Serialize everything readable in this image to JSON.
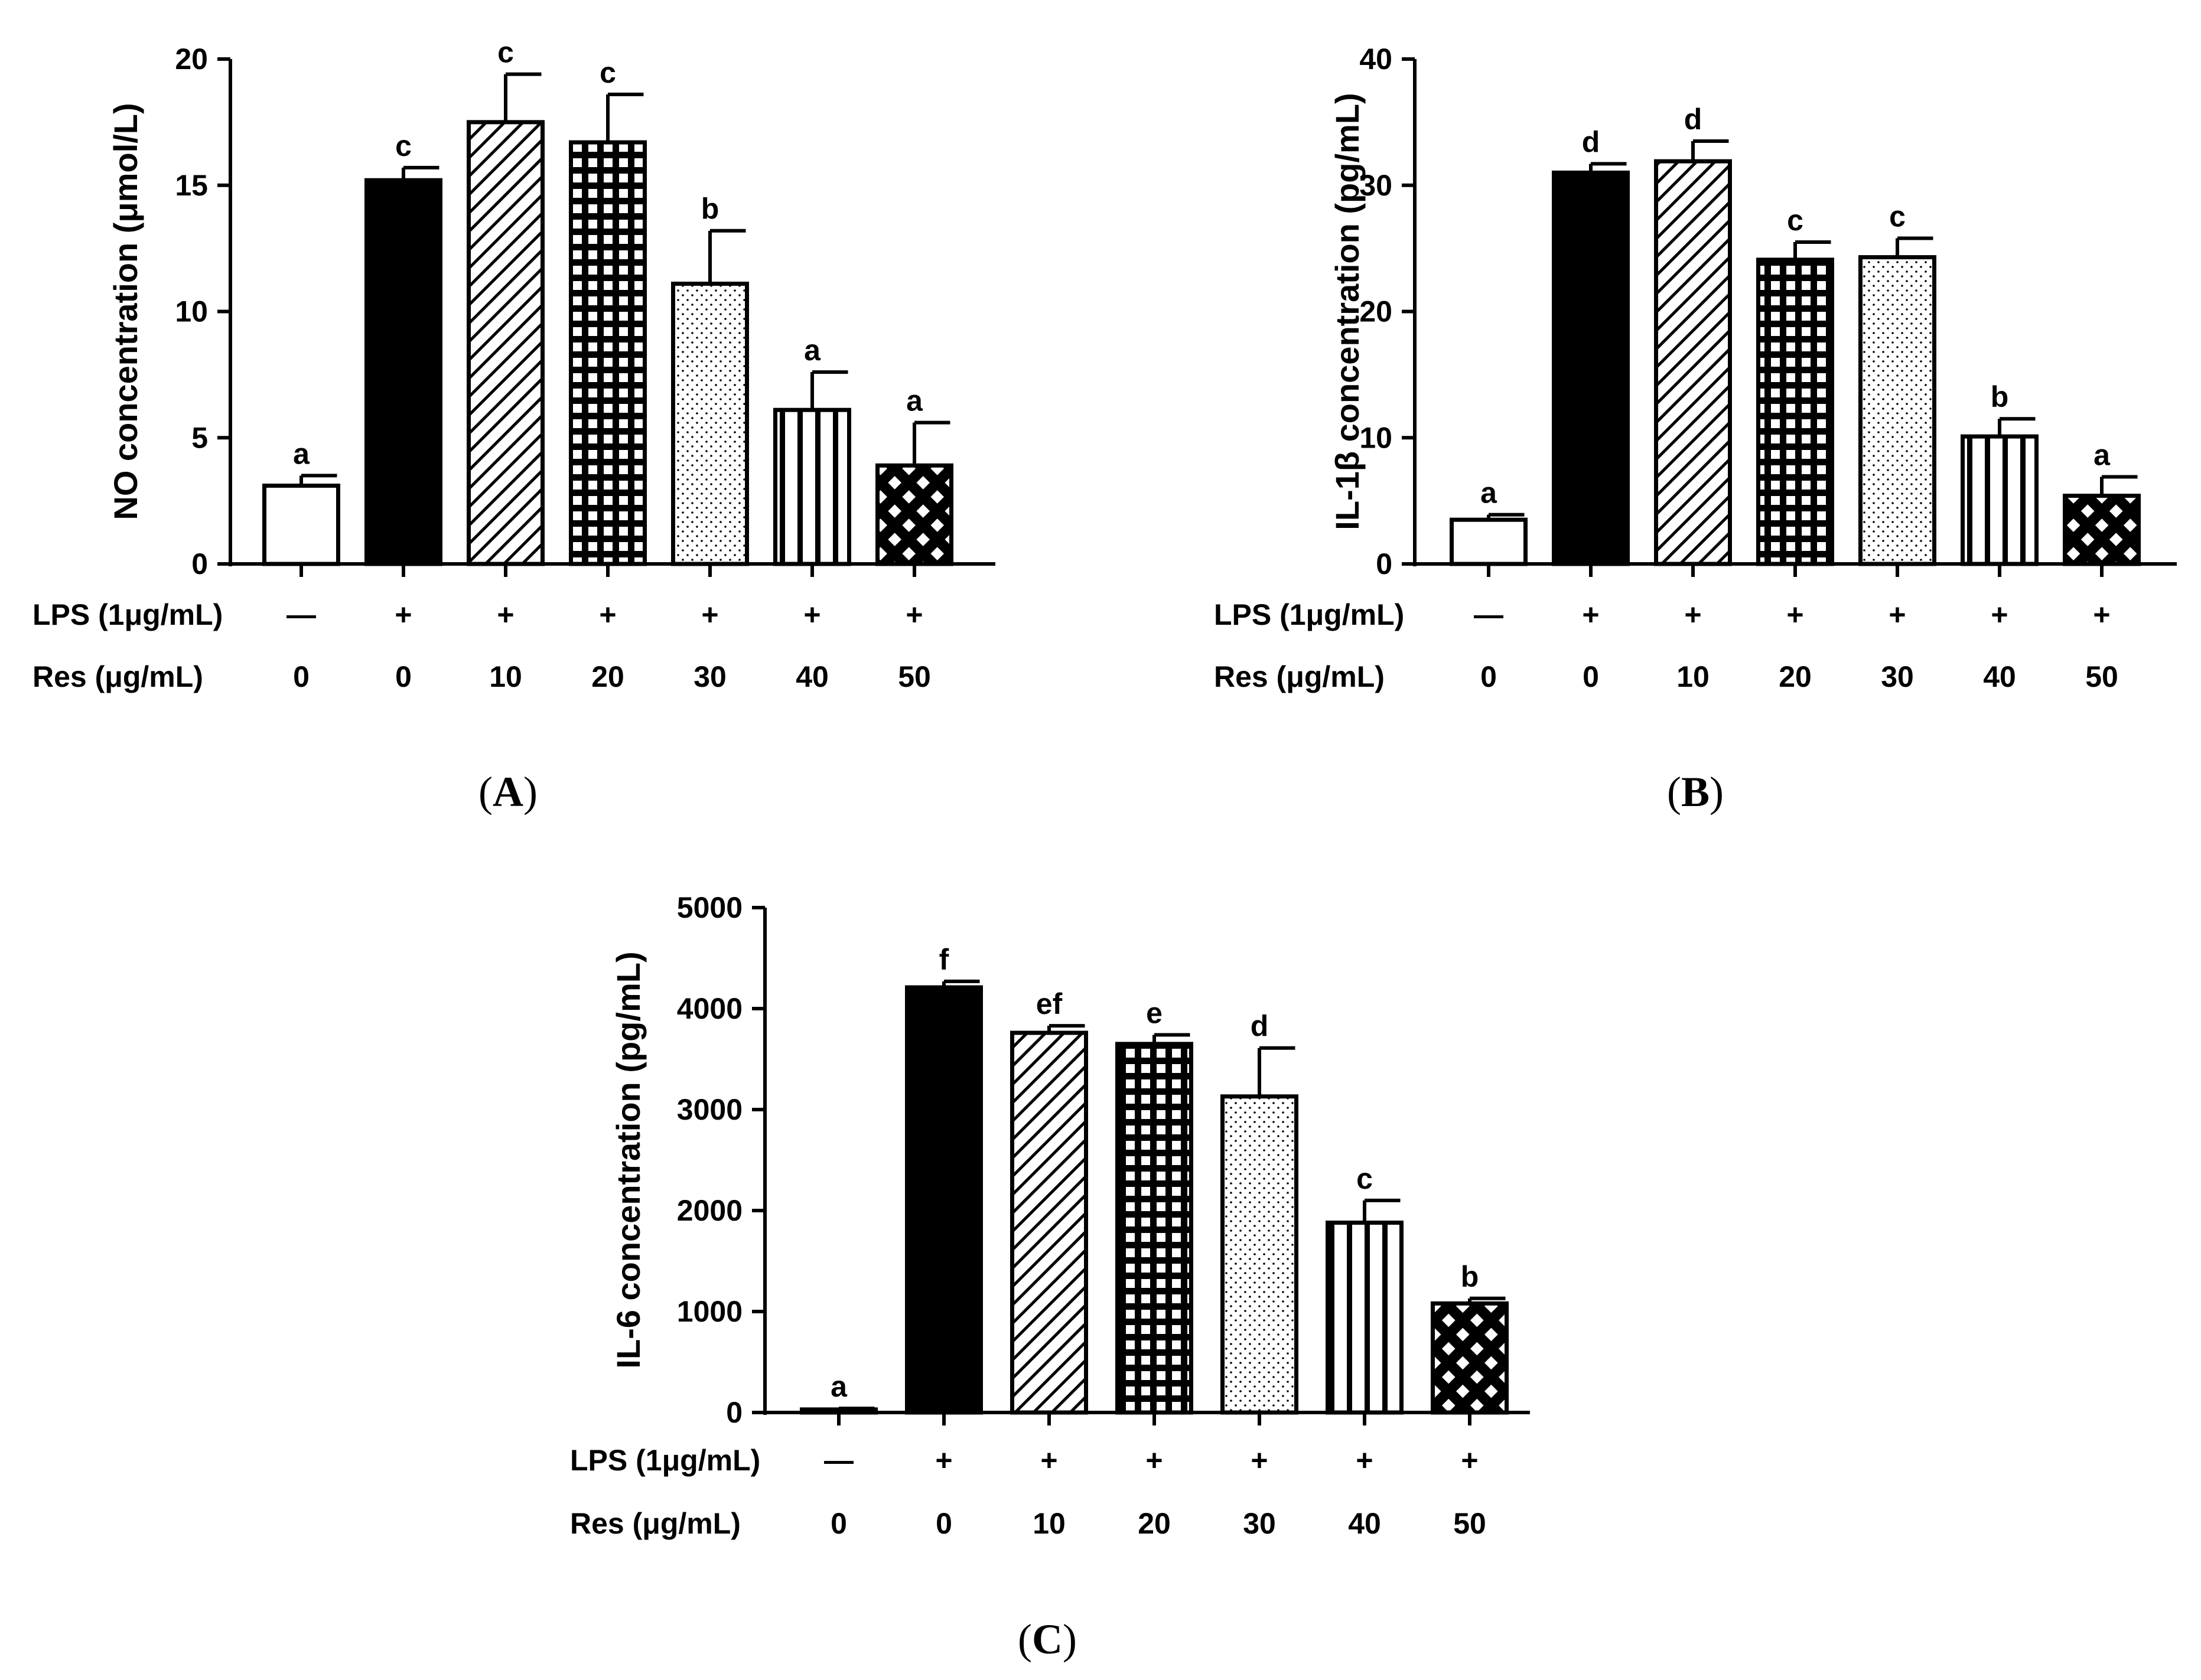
{
  "chart_data": [
    {
      "id": "A",
      "type": "bar",
      "panel_label": "A",
      "ylabel": "NO concentration (μmol/L)",
      "ylim": [
        0,
        20
      ],
      "yticks": [
        0,
        5,
        10,
        15,
        20
      ],
      "row_labels": [
        "LPS (1μg/mL)",
        "Res (μg/mL)"
      ],
      "lps": [
        "—",
        "+",
        "+",
        "+",
        "+",
        "+",
        "+"
      ],
      "res": [
        "0",
        "0",
        "10",
        "20",
        "30",
        "40",
        "50"
      ],
      "values": [
        3.1,
        15.2,
        17.5,
        16.7,
        11.1,
        6.1,
        3.9
      ],
      "errors": [
        0.4,
        0.5,
        1.9,
        1.9,
        2.1,
        1.5,
        1.7
      ],
      "significance": [
        "a",
        "c",
        "c",
        "c",
        "b",
        "a",
        "a"
      ],
      "patterns": [
        "white",
        "black",
        "diagonal",
        "grid",
        "dots",
        "vertical",
        "crosshatch"
      ]
    },
    {
      "id": "B",
      "type": "bar",
      "panel_label": "B",
      "ylabel": "IL-1β concentration (pg/mL)",
      "ylim": [
        0,
        40
      ],
      "yticks": [
        0,
        10,
        20,
        30,
        40
      ],
      "row_labels": [
        "LPS (1μg/mL)",
        "Res (μg/mL)"
      ],
      "lps": [
        "—",
        "+",
        "+",
        "+",
        "+",
        "+",
        "+"
      ],
      "res": [
        "0",
        "0",
        "10",
        "20",
        "30",
        "40",
        "50"
      ],
      "values": [
        3.5,
        31.0,
        31.9,
        24.1,
        24.3,
        10.1,
        5.4
      ],
      "errors": [
        0.4,
        0.7,
        1.6,
        1.4,
        1.5,
        1.4,
        1.5
      ],
      "significance": [
        "a",
        "d",
        "d",
        "c",
        "c",
        "b",
        "a"
      ],
      "patterns": [
        "white",
        "black",
        "diagonal",
        "grid",
        "dots",
        "vertical",
        "crosshatch"
      ]
    },
    {
      "id": "C",
      "type": "bar",
      "panel_label": "C",
      "ylabel": "IL-6 concentration (pg/mL)",
      "ylim": [
        0,
        5000
      ],
      "yticks": [
        0,
        1000,
        2000,
        3000,
        4000,
        5000
      ],
      "row_labels": [
        "LPS (1μg/mL)",
        "Res (μg/mL)"
      ],
      "lps": [
        "—",
        "+",
        "+",
        "+",
        "+",
        "+",
        "+"
      ],
      "res": [
        "0",
        "0",
        "10",
        "20",
        "30",
        "40",
        "50"
      ],
      "values": [
        30,
        4210,
        3760,
        3650,
        3130,
        1880,
        1080
      ],
      "errors": [
        10,
        60,
        70,
        90,
        480,
        220,
        50
      ],
      "significance": [
        "a",
        "f",
        "ef",
        "e",
        "d",
        "c",
        "b"
      ],
      "patterns": [
        "white",
        "black",
        "diagonal",
        "grid",
        "dots",
        "vertical",
        "crosshatch"
      ]
    }
  ]
}
